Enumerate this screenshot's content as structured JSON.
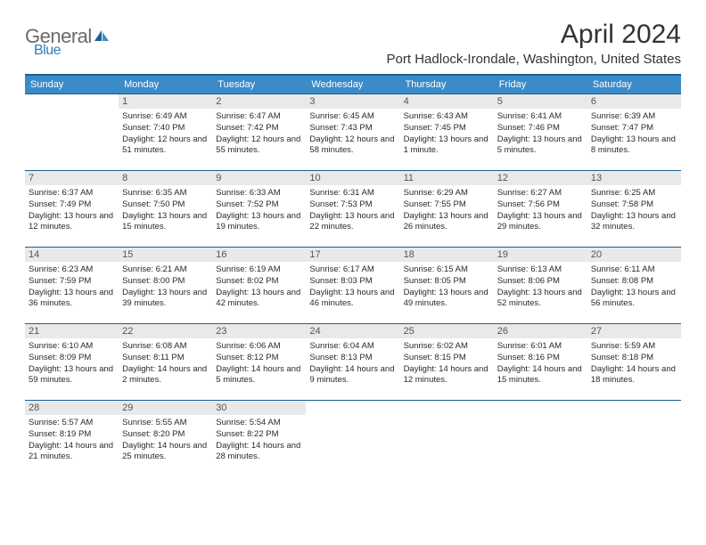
{
  "logo": {
    "general": "General",
    "blue": "Blue"
  },
  "month_title": "April 2024",
  "location": "Port Hadlock-Irondale, Washington, United States",
  "colors": {
    "header_bg": "#3b8bc9",
    "header_border": "#1e5f8e",
    "daynum_bg": "#e9e9e9",
    "logo_blue": "#2b7cbf",
    "text": "#333333",
    "background": "#ffffff"
  },
  "day_names": [
    "Sunday",
    "Monday",
    "Tuesday",
    "Wednesday",
    "Thursday",
    "Friday",
    "Saturday"
  ],
  "layout": {
    "weeks": 5,
    "first_weekday_index": 1,
    "days_in_month": 30
  },
  "days": {
    "1": {
      "sunrise": "6:49 AM",
      "sunset": "7:40 PM",
      "daylight": "12 hours and 51 minutes."
    },
    "2": {
      "sunrise": "6:47 AM",
      "sunset": "7:42 PM",
      "daylight": "12 hours and 55 minutes."
    },
    "3": {
      "sunrise": "6:45 AM",
      "sunset": "7:43 PM",
      "daylight": "12 hours and 58 minutes."
    },
    "4": {
      "sunrise": "6:43 AM",
      "sunset": "7:45 PM",
      "daylight": "13 hours and 1 minute."
    },
    "5": {
      "sunrise": "6:41 AM",
      "sunset": "7:46 PM",
      "daylight": "13 hours and 5 minutes."
    },
    "6": {
      "sunrise": "6:39 AM",
      "sunset": "7:47 PM",
      "daylight": "13 hours and 8 minutes."
    },
    "7": {
      "sunrise": "6:37 AM",
      "sunset": "7:49 PM",
      "daylight": "13 hours and 12 minutes."
    },
    "8": {
      "sunrise": "6:35 AM",
      "sunset": "7:50 PM",
      "daylight": "13 hours and 15 minutes."
    },
    "9": {
      "sunrise": "6:33 AM",
      "sunset": "7:52 PM",
      "daylight": "13 hours and 19 minutes."
    },
    "10": {
      "sunrise": "6:31 AM",
      "sunset": "7:53 PM",
      "daylight": "13 hours and 22 minutes."
    },
    "11": {
      "sunrise": "6:29 AM",
      "sunset": "7:55 PM",
      "daylight": "13 hours and 26 minutes."
    },
    "12": {
      "sunrise": "6:27 AM",
      "sunset": "7:56 PM",
      "daylight": "13 hours and 29 minutes."
    },
    "13": {
      "sunrise": "6:25 AM",
      "sunset": "7:58 PM",
      "daylight": "13 hours and 32 minutes."
    },
    "14": {
      "sunrise": "6:23 AM",
      "sunset": "7:59 PM",
      "daylight": "13 hours and 36 minutes."
    },
    "15": {
      "sunrise": "6:21 AM",
      "sunset": "8:00 PM",
      "daylight": "13 hours and 39 minutes."
    },
    "16": {
      "sunrise": "6:19 AM",
      "sunset": "8:02 PM",
      "daylight": "13 hours and 42 minutes."
    },
    "17": {
      "sunrise": "6:17 AM",
      "sunset": "8:03 PM",
      "daylight": "13 hours and 46 minutes."
    },
    "18": {
      "sunrise": "6:15 AM",
      "sunset": "8:05 PM",
      "daylight": "13 hours and 49 minutes."
    },
    "19": {
      "sunrise": "6:13 AM",
      "sunset": "8:06 PM",
      "daylight": "13 hours and 52 minutes."
    },
    "20": {
      "sunrise": "6:11 AM",
      "sunset": "8:08 PM",
      "daylight": "13 hours and 56 minutes."
    },
    "21": {
      "sunrise": "6:10 AM",
      "sunset": "8:09 PM",
      "daylight": "13 hours and 59 minutes."
    },
    "22": {
      "sunrise": "6:08 AM",
      "sunset": "8:11 PM",
      "daylight": "14 hours and 2 minutes."
    },
    "23": {
      "sunrise": "6:06 AM",
      "sunset": "8:12 PM",
      "daylight": "14 hours and 5 minutes."
    },
    "24": {
      "sunrise": "6:04 AM",
      "sunset": "8:13 PM",
      "daylight": "14 hours and 9 minutes."
    },
    "25": {
      "sunrise": "6:02 AM",
      "sunset": "8:15 PM",
      "daylight": "14 hours and 12 minutes."
    },
    "26": {
      "sunrise": "6:01 AM",
      "sunset": "8:16 PM",
      "daylight": "14 hours and 15 minutes."
    },
    "27": {
      "sunrise": "5:59 AM",
      "sunset": "8:18 PM",
      "daylight": "14 hours and 18 minutes."
    },
    "28": {
      "sunrise": "5:57 AM",
      "sunset": "8:19 PM",
      "daylight": "14 hours and 21 minutes."
    },
    "29": {
      "sunrise": "5:55 AM",
      "sunset": "8:20 PM",
      "daylight": "14 hours and 25 minutes."
    },
    "30": {
      "sunrise": "5:54 AM",
      "sunset": "8:22 PM",
      "daylight": "14 hours and 28 minutes."
    }
  },
  "labels": {
    "sunrise": "Sunrise: ",
    "sunset": "Sunset: ",
    "daylight": "Daylight: "
  }
}
